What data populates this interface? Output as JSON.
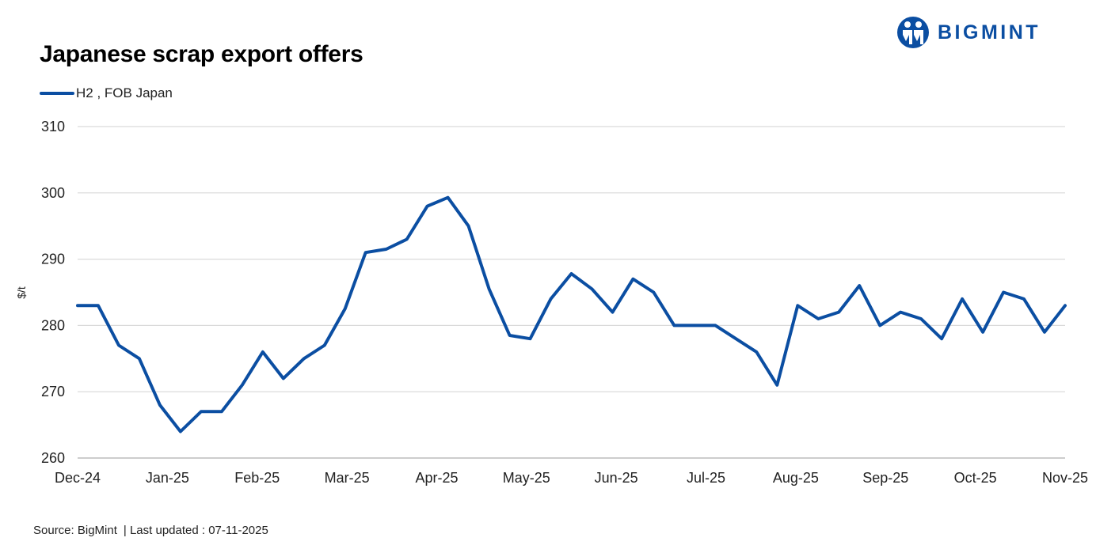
{
  "header": {
    "title": "Japanese scrap export offers",
    "brand": "BIGMINT"
  },
  "footer": {
    "source": "Source: BigMint",
    "updated": "| Last updated : 07-11-2025"
  },
  "colors": {
    "series": "#0B4EA2",
    "grid": "#D9D9D9",
    "brand": "#0B4EA2"
  },
  "chart_data": {
    "type": "line",
    "title": "Japanese scrap export offers",
    "ylabel": "$/t",
    "xlabel": "",
    "ylim": [
      260,
      310
    ],
    "yticks": [
      260,
      270,
      280,
      290,
      300,
      310
    ],
    "xticks": [
      "Dec-24",
      "Jan-25",
      "Feb-25",
      "Mar-25",
      "Apr-25",
      "May-25",
      "Jun-25",
      "Jul-25",
      "Aug-25",
      "Sep-25",
      "Oct-25",
      "Nov-25"
    ],
    "grid": true,
    "legend": "top-left",
    "series": [
      {
        "name": "H2 , FOB Japan",
        "values": [
          283,
          283,
          277,
          275,
          268,
          264,
          267,
          267,
          271,
          276,
          272,
          275,
          277,
          282.5,
          291,
          291.5,
          293,
          298,
          299.3,
          295,
          285.5,
          278.5,
          278,
          284,
          287.8,
          285.5,
          282,
          287,
          285,
          280,
          280,
          280,
          278,
          276,
          271,
          283,
          281,
          282,
          286,
          280,
          282,
          281,
          278,
          284,
          279,
          285,
          284,
          279,
          283
        ]
      }
    ]
  }
}
